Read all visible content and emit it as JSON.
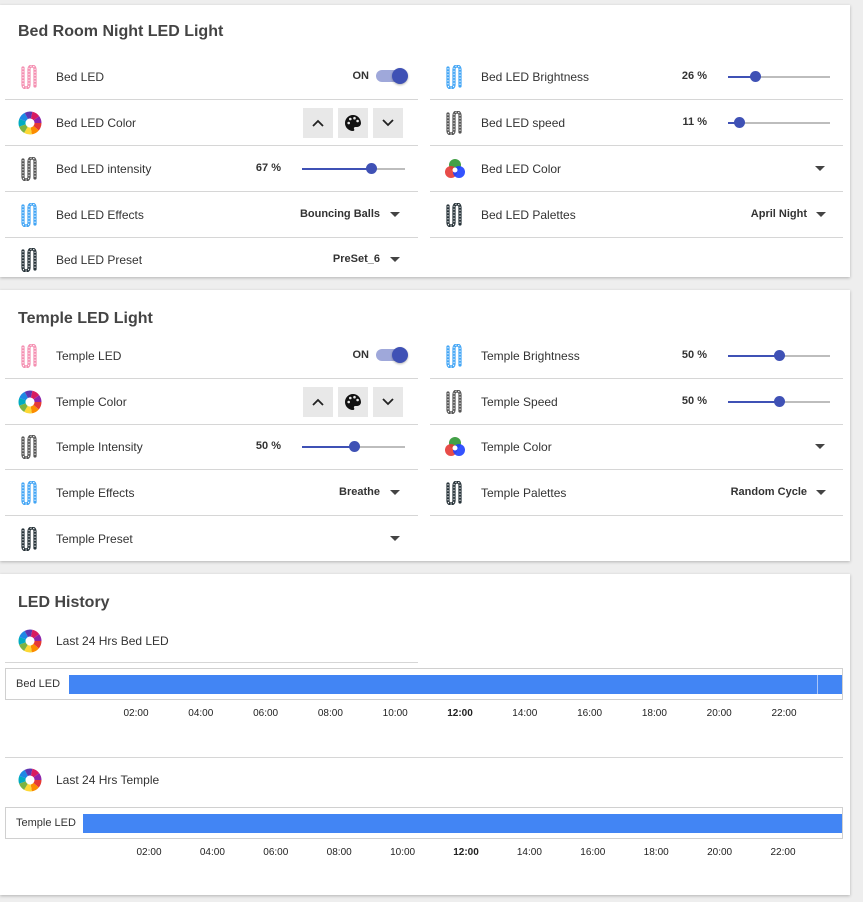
{
  "bedroom": {
    "title": "Bed Room Night LED Light",
    "left": {
      "led": {
        "label": "Bed LED",
        "state": "ON"
      },
      "color": {
        "label": "Bed LED Color"
      },
      "intensity": {
        "label": "Bed LED intensity",
        "value": "67 %",
        "level": 67
      },
      "effects": {
        "label": "Bed LED Effects",
        "value": "Bouncing Balls"
      },
      "preset": {
        "label": "Bed LED Preset",
        "value": "PreSet_6"
      }
    },
    "right": {
      "brightness": {
        "label": "Bed LED Brightness",
        "value": "26 %",
        "level": 26
      },
      "speed": {
        "label": "Bed LED speed",
        "value": "11 %",
        "level": 11
      },
      "color": {
        "label": "Bed LED Color"
      },
      "palettes": {
        "label": "Bed LED Palettes",
        "value": "April Night"
      }
    }
  },
  "temple": {
    "title": "Temple LED Light",
    "left": {
      "led": {
        "label": "Temple LED",
        "state": "ON"
      },
      "color": {
        "label": "Temple Color"
      },
      "intensity": {
        "label": "Temple Intensity",
        "value": "50 %",
        "level": 50
      },
      "effects": {
        "label": "Temple Effects",
        "value": "Breathe"
      },
      "preset": {
        "label": "Temple Preset",
        "value": ""
      }
    },
    "right": {
      "brightness": {
        "label": "Temple Brightness",
        "value": "50 %",
        "level": 50
      },
      "speed": {
        "label": "Temple Speed",
        "value": "50 %",
        "level": 50
      },
      "color": {
        "label": "Temple Color"
      },
      "palettes": {
        "label": "Temple Palettes",
        "value": "Random Cycle"
      }
    }
  },
  "history": {
    "title": "LED History",
    "bed": {
      "label": "Last 24 Hrs Bed LED",
      "timeline_label": "Bed LED"
    },
    "temple": {
      "label": "Last 24 Hrs Temple",
      "timeline_label": "Temple LED"
    },
    "ticks": [
      "02:00",
      "04:00",
      "06:00",
      "08:00",
      "10:00",
      "12:00",
      "14:00",
      "16:00",
      "18:00",
      "20:00",
      "22:00"
    ],
    "bold_tick": "12:00"
  },
  "colors": {
    "accent": "#3f51b5",
    "timeline_bar": "#4285f4"
  },
  "icons": {
    "led_strip": "led-strip-icon",
    "color_wheel": "color-wheel-icon",
    "rgb": "rgb-circles-icon",
    "palette": "palette-icon",
    "chevron_up": "chevron-up-icon",
    "chevron_down": "chevron-down-icon",
    "dropdown": "dropdown-caret-icon"
  }
}
